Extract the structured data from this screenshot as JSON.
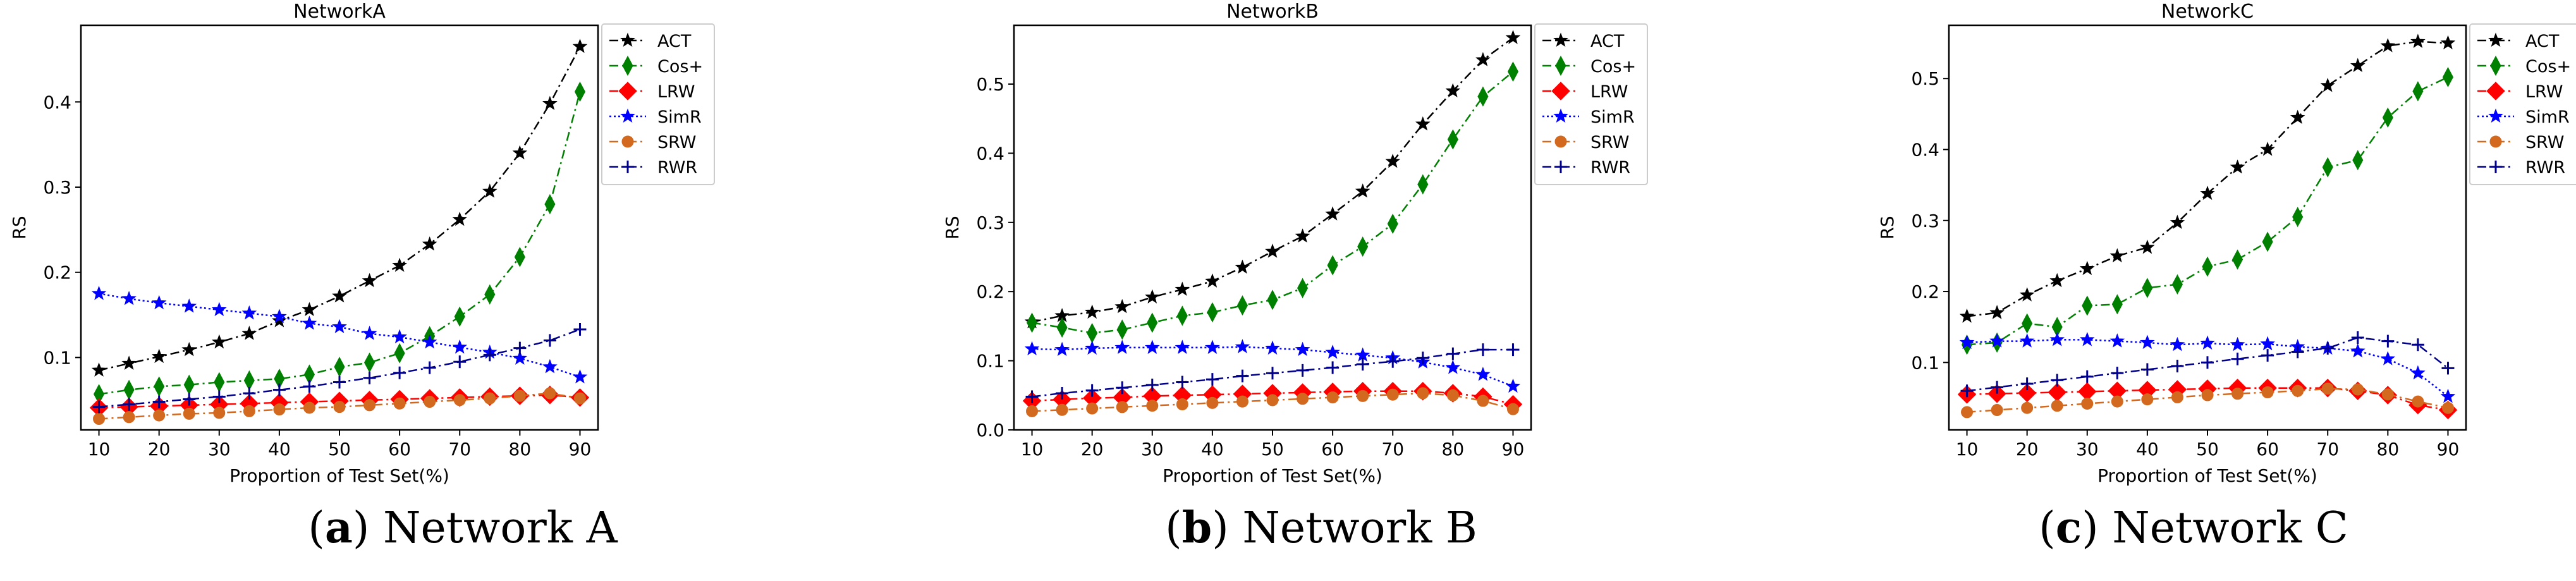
{
  "figure": {
    "captions": [
      {
        "tag": "a",
        "text": "Network A"
      },
      {
        "tag": "b",
        "text": "Network B"
      },
      {
        "tag": "c",
        "text": "Network C"
      }
    ]
  },
  "series_styles": {
    "ACT": {
      "color": "#000000",
      "marker": "star",
      "dash": "14,6,3,6"
    },
    "Cos+": {
      "color": "#008000",
      "marker": "diamond",
      "dash": "14,6,3,6"
    },
    "LRW": {
      "color": "#ff0000",
      "marker": "bigdiamond",
      "dash": "14,6,3,6"
    },
    "SimR": {
      "color": "#0000ff",
      "marker": "star",
      "dash": "3,4"
    },
    "SRW": {
      "color": "#d2691e",
      "marker": "circle",
      "dash": "14,6,3,6"
    },
    "RWR": {
      "color": "#00008b",
      "marker": "plus",
      "dash": "14,6,3,6"
    }
  },
  "chart_data": [
    {
      "type": "line",
      "title": "NetworkA",
      "xlabel": "Proportion of Test Set(%)",
      "ylabel": "RS",
      "xlim": [
        7,
        93
      ],
      "ylim": [
        0.015,
        0.49
      ],
      "xticks": [
        10,
        20,
        30,
        40,
        50,
        60,
        70,
        80,
        90
      ],
      "yticks": [
        0.1,
        0.2,
        0.3,
        0.4
      ],
      "legend_position": "outside-right",
      "x": [
        10,
        15,
        20,
        25,
        30,
        35,
        40,
        45,
        50,
        55,
        60,
        65,
        70,
        75,
        80,
        85,
        90
      ],
      "series": [
        {
          "name": "ACT",
          "values": [
            0.085,
            0.093,
            0.101,
            0.109,
            0.118,
            0.128,
            0.143,
            0.156,
            0.172,
            0.19,
            0.208,
            0.233,
            0.262,
            0.295,
            0.34,
            0.398,
            0.465
          ]
        },
        {
          "name": "Cos+",
          "values": [
            0.057,
            0.062,
            0.066,
            0.068,
            0.071,
            0.073,
            0.075,
            0.08,
            0.089,
            0.094,
            0.105,
            0.125,
            0.148,
            0.174,
            0.218,
            0.28,
            0.412
          ]
        },
        {
          "name": "LRW",
          "values": [
            0.041,
            0.042,
            0.043,
            0.044,
            0.045,
            0.046,
            0.047,
            0.048,
            0.049,
            0.05,
            0.051,
            0.052,
            0.053,
            0.054,
            0.055,
            0.056,
            0.053
          ]
        },
        {
          "name": "SimR",
          "values": [
            0.175,
            0.169,
            0.164,
            0.16,
            0.156,
            0.152,
            0.148,
            0.14,
            0.136,
            0.128,
            0.124,
            0.118,
            0.112,
            0.106,
            0.099,
            0.089,
            0.077
          ]
        },
        {
          "name": "SRW",
          "values": [
            0.028,
            0.03,
            0.032,
            0.034,
            0.035,
            0.037,
            0.039,
            0.041,
            0.042,
            0.044,
            0.046,
            0.048,
            0.05,
            0.052,
            0.055,
            0.058,
            0.052
          ]
        },
        {
          "name": "RWR",
          "values": [
            0.042,
            0.045,
            0.048,
            0.051,
            0.054,
            0.058,
            0.062,
            0.066,
            0.071,
            0.076,
            0.082,
            0.088,
            0.095,
            0.103,
            0.111,
            0.12,
            0.133
          ]
        }
      ]
    },
    {
      "type": "line",
      "title": "NetworkB",
      "xlabel": "Proportion of Test Set(%)",
      "ylabel": "RS",
      "xlim": [
        7,
        93
      ],
      "ylim": [
        0.0,
        0.585
      ],
      "xticks": [
        10,
        20,
        30,
        40,
        50,
        60,
        70,
        80,
        90
      ],
      "yticks": [
        0.0,
        0.1,
        0.2,
        0.3,
        0.4,
        0.5
      ],
      "legend_position": "outside-right",
      "x": [
        10,
        15,
        20,
        25,
        30,
        35,
        40,
        45,
        50,
        55,
        60,
        65,
        70,
        75,
        80,
        85,
        90
      ],
      "series": [
        {
          "name": "ACT",
          "values": [
            0.156,
            0.165,
            0.17,
            0.178,
            0.192,
            0.203,
            0.215,
            0.235,
            0.258,
            0.28,
            0.312,
            0.345,
            0.388,
            0.442,
            0.49,
            0.535,
            0.567
          ]
        },
        {
          "name": "Cos+",
          "values": [
            0.155,
            0.148,
            0.14,
            0.145,
            0.155,
            0.165,
            0.17,
            0.18,
            0.188,
            0.205,
            0.238,
            0.265,
            0.298,
            0.355,
            0.42,
            0.482,
            0.518
          ]
        },
        {
          "name": "LRW",
          "values": [
            0.042,
            0.044,
            0.046,
            0.047,
            0.049,
            0.05,
            0.051,
            0.052,
            0.053,
            0.054,
            0.055,
            0.056,
            0.056,
            0.056,
            0.053,
            0.048,
            0.037
          ]
        },
        {
          "name": "SimR",
          "values": [
            0.117,
            0.116,
            0.118,
            0.119,
            0.119,
            0.119,
            0.119,
            0.12,
            0.118,
            0.116,
            0.112,
            0.108,
            0.104,
            0.098,
            0.09,
            0.08,
            0.063
          ]
        },
        {
          "name": "SRW",
          "values": [
            0.027,
            0.029,
            0.031,
            0.033,
            0.035,
            0.037,
            0.039,
            0.041,
            0.043,
            0.045,
            0.047,
            0.049,
            0.051,
            0.053,
            0.05,
            0.042,
            0.03
          ]
        },
        {
          "name": "RWR",
          "values": [
            0.048,
            0.053,
            0.057,
            0.061,
            0.065,
            0.069,
            0.073,
            0.078,
            0.082,
            0.086,
            0.09,
            0.095,
            0.099,
            0.104,
            0.11,
            0.116,
            0.116
          ]
        }
      ]
    },
    {
      "type": "line",
      "title": "NetworkC",
      "xlabel": "Proportion of Test Set(%)",
      "ylabel": "RS",
      "xlim": [
        7,
        93
      ],
      "ylim": [
        0.005,
        0.575
      ],
      "xticks": [
        10,
        20,
        30,
        40,
        50,
        60,
        70,
        80,
        90
      ],
      "yticks": [
        0.1,
        0.2,
        0.3,
        0.4,
        0.5
      ],
      "legend_position": "outside-right",
      "x": [
        10,
        15,
        20,
        25,
        30,
        35,
        40,
        45,
        50,
        55,
        60,
        65,
        70,
        75,
        80,
        85,
        90
      ],
      "series": [
        {
          "name": "ACT",
          "values": [
            0.165,
            0.17,
            0.195,
            0.215,
            0.232,
            0.25,
            0.262,
            0.297,
            0.338,
            0.375,
            0.4,
            0.445,
            0.49,
            0.518,
            0.546,
            0.552,
            0.55
          ]
        },
        {
          "name": "Cos+",
          "values": [
            0.125,
            0.128,
            0.155,
            0.15,
            0.18,
            0.182,
            0.205,
            0.21,
            0.235,
            0.245,
            0.27,
            0.305,
            0.375,
            0.385,
            0.445,
            0.482,
            0.502
          ]
        },
        {
          "name": "LRW",
          "values": [
            0.055,
            0.056,
            0.057,
            0.058,
            0.059,
            0.06,
            0.061,
            0.062,
            0.063,
            0.064,
            0.064,
            0.064,
            0.064,
            0.06,
            0.054,
            0.04,
            0.033
          ]
        },
        {
          "name": "SimR",
          "values": [
            0.128,
            0.13,
            0.13,
            0.132,
            0.132,
            0.13,
            0.128,
            0.125,
            0.127,
            0.125,
            0.126,
            0.122,
            0.12,
            0.116,
            0.105,
            0.085,
            0.052
          ]
        },
        {
          "name": "SRW",
          "values": [
            0.03,
            0.033,
            0.036,
            0.039,
            0.042,
            0.045,
            0.048,
            0.051,
            0.054,
            0.056,
            0.058,
            0.06,
            0.063,
            0.062,
            0.055,
            0.045,
            0.036
          ]
        },
        {
          "name": "RWR",
          "values": [
            0.06,
            0.065,
            0.07,
            0.075,
            0.08,
            0.085,
            0.09,
            0.095,
            0.1,
            0.105,
            0.11,
            0.115,
            0.12,
            0.135,
            0.13,
            0.125,
            0.092
          ]
        }
      ]
    }
  ]
}
